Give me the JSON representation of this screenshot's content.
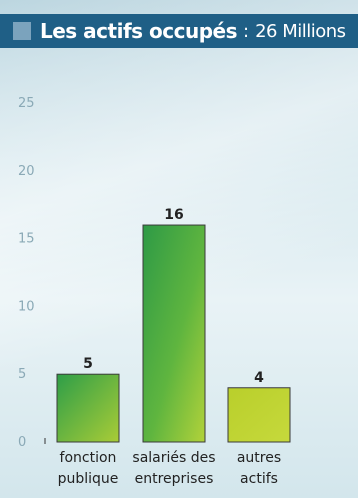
{
  "header": {
    "title": "Les actifs occupés",
    "separator": ":",
    "subtitle": "26 Millions"
  },
  "colors": {
    "header_bg": "#1f5f86",
    "bar_green": "#3aa648",
    "bar_yellowgreen": "#b7cf2c"
  },
  "chart_data": {
    "type": "bar",
    "title": "Les actifs occupés : 26 Millions",
    "categories": [
      [
        "fonction",
        "publique"
      ],
      [
        "salariés des",
        "entreprises"
      ],
      [
        "autres",
        "actifs"
      ]
    ],
    "values": [
      5,
      16,
      4
    ],
    "ylim": [
      0,
      25
    ],
    "yticks": [
      0,
      5,
      10,
      15,
      20,
      25
    ],
    "grid": false
  }
}
